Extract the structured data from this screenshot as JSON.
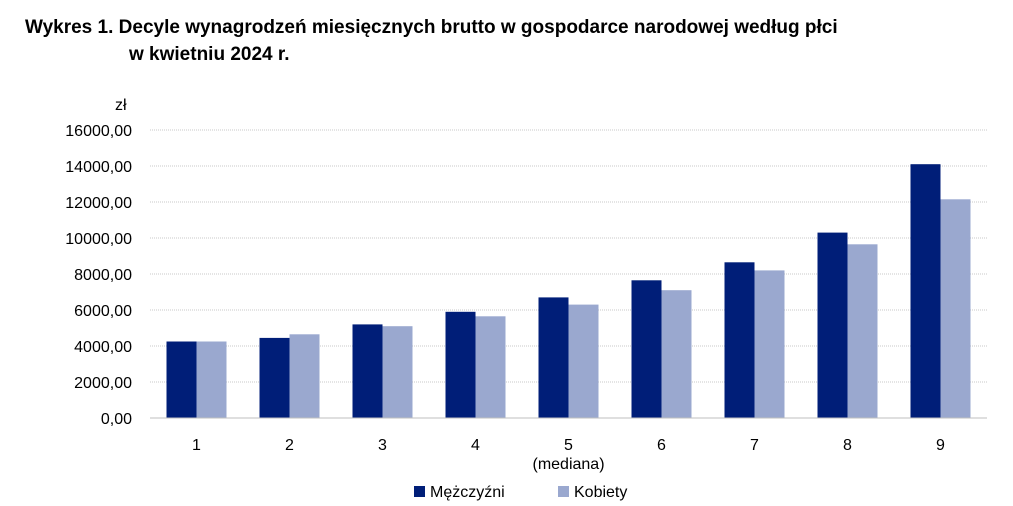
{
  "title_line1": "Wykres 1. Decyle wynagrodzeń miesięcznych brutto w gospodarce narodowej według płci",
  "title_line2": "w kwietniu 2024 r.",
  "chart_data": {
    "type": "bar",
    "unit_label": "zł",
    "categories": [
      "1",
      "2",
      "3",
      "4",
      "5",
      "6",
      "7",
      "8",
      "9"
    ],
    "category_sublabel": {
      "category": "5",
      "text": "(mediana)"
    },
    "series": [
      {
        "name": "Mężczyźni",
        "color": "#001e78",
        "values": [
          4250,
          4450,
          5200,
          5900,
          6700,
          7650,
          8650,
          10300,
          14100
        ]
      },
      {
        "name": "Kobiety",
        "color": "#9aa8cf",
        "values": [
          4250,
          4650,
          5100,
          5650,
          6300,
          7100,
          8200,
          9650,
          12150
        ]
      }
    ],
    "yticks": [
      "0,00",
      "2000,00",
      "4000,00",
      "6000,00",
      "8000,00",
      "10000,00",
      "12000,00",
      "14000,00",
      "16000,00"
    ],
    "ylim": [
      0,
      16000
    ],
    "grid": true,
    "legend_position": "bottom-center"
  }
}
